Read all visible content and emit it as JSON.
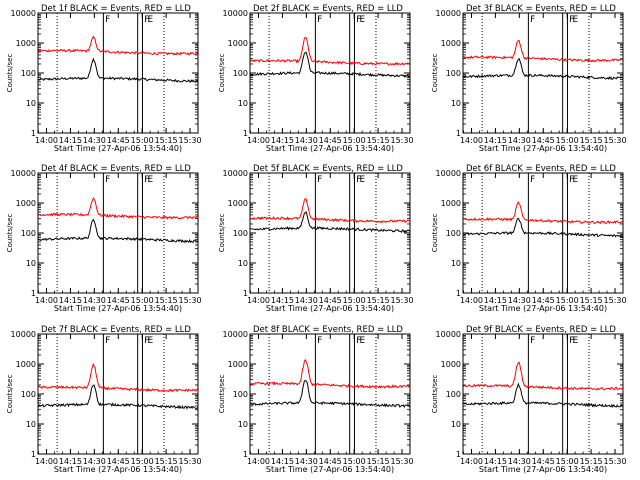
{
  "colors": {
    "events": "#000000",
    "lld": "#ff0000",
    "axis": "#000000"
  },
  "chart_data": [
    {
      "type": "line",
      "title": "Det 1f BLACK = Events, RED = LLD",
      "xlabel": "Start Time (27-Apr-06 13:54:40)",
      "ylabel": "Counts/sec",
      "yscale": "log",
      "ylim": [
        1,
        10000
      ],
      "xticks": [
        "14:00",
        "14:15",
        "14:30",
        "14:45",
        "15:00",
        "15:15",
        "15:30"
      ],
      "yticks": [
        "1",
        "10",
        "100",
        "1000",
        "10000"
      ],
      "markers": [
        "F",
        "F",
        "E"
      ],
      "series": [
        {
          "name": "Events",
          "color": "#000000",
          "baseline": 60,
          "peak": 280
        },
        {
          "name": "LLD",
          "color": "#ff0000",
          "baseline": 500,
          "peak": 1500
        }
      ]
    },
    {
      "type": "line",
      "title": "Det 2f BLACK = Events, RED = LLD",
      "xlabel": "Start Time (27-Apr-06 13:54:40)",
      "ylabel": "Counts/sec",
      "yscale": "log",
      "ylim": [
        1,
        10000
      ],
      "xticks": [
        "14:00",
        "14:15",
        "14:30",
        "14:45",
        "15:00",
        "15:15",
        "15:30"
      ],
      "yticks": [
        "1",
        "10",
        "100",
        "1000",
        "10000"
      ],
      "markers": [
        "F",
        "F",
        "E"
      ],
      "series": [
        {
          "name": "Events",
          "color": "#000000",
          "baseline": 90,
          "peak": 500
        },
        {
          "name": "LLD",
          "color": "#ff0000",
          "baseline": 230,
          "peak": 1500
        }
      ]
    },
    {
      "type": "line",
      "title": "Det 3f BLACK = Events, RED = LLD",
      "xlabel": "Start Time (27-Apr-06 13:54:40)",
      "ylabel": "Counts/sec",
      "yscale": "log",
      "ylim": [
        1,
        10000
      ],
      "xticks": [
        "14:00",
        "14:15",
        "14:30",
        "14:45",
        "15:00",
        "15:15",
        "15:30"
      ],
      "yticks": [
        "1",
        "10",
        "100",
        "1000",
        "10000"
      ],
      "markers": [
        "F",
        "F",
        "E"
      ],
      "series": [
        {
          "name": "Events",
          "color": "#000000",
          "baseline": 75,
          "peak": 300
        },
        {
          "name": "LLD",
          "color": "#ff0000",
          "baseline": 300,
          "peak": 1200
        }
      ]
    },
    {
      "type": "line",
      "title": "Det 4f BLACK = Events, RED = LLD",
      "xlabel": "Start Time (27-Apr-06 13:54:40)",
      "ylabel": "Counts/sec",
      "yscale": "log",
      "ylim": [
        1,
        10000
      ],
      "xticks": [
        "14:00",
        "14:15",
        "14:30",
        "14:45",
        "15:00",
        "15:15",
        "15:30"
      ],
      "yticks": [
        "1",
        "10",
        "100",
        "1000",
        "10000"
      ],
      "markers": [
        "F",
        "F",
        "E"
      ],
      "series": [
        {
          "name": "Events",
          "color": "#000000",
          "baseline": 60,
          "peak": 270
        },
        {
          "name": "LLD",
          "color": "#ff0000",
          "baseline": 370,
          "peak": 1400
        }
      ]
    },
    {
      "type": "line",
      "title": "Det 5f BLACK = Events, RED = LLD",
      "xlabel": "Start Time (27-Apr-06 13:54:40)",
      "ylabel": "Counts/sec",
      "yscale": "log",
      "ylim": [
        1,
        10000
      ],
      "xticks": [
        "14:00",
        "14:15",
        "14:30",
        "14:45",
        "15:00",
        "15:15",
        "15:30"
      ],
      "yticks": [
        "1",
        "10",
        "100",
        "1000",
        "10000"
      ],
      "markers": [
        "F",
        "F",
        "E"
      ],
      "series": [
        {
          "name": "Events",
          "color": "#000000",
          "baseline": 130,
          "peak": 480
        },
        {
          "name": "LLD",
          "color": "#ff0000",
          "baseline": 280,
          "peak": 1300
        }
      ]
    },
    {
      "type": "line",
      "title": "Det 6f BLACK = Events, RED = LLD",
      "xlabel": "Start Time (27-Apr-06 13:54:40)",
      "ylabel": "Counts/sec",
      "yscale": "log",
      "ylim": [
        1,
        10000
      ],
      "xticks": [
        "14:00",
        "14:15",
        "14:30",
        "14:45",
        "15:00",
        "15:15",
        "15:30"
      ],
      "yticks": [
        "1",
        "10",
        "100",
        "1000",
        "10000"
      ],
      "markers": [
        "F",
        "F",
        "E"
      ],
      "series": [
        {
          "name": "Events",
          "color": "#000000",
          "baseline": 90,
          "peak": 300
        },
        {
          "name": "LLD",
          "color": "#ff0000",
          "baseline": 260,
          "peak": 1000
        }
      ]
    },
    {
      "type": "line",
      "title": "Det 7f BLACK = Events, RED = LLD",
      "xlabel": "Start Time (27-Apr-06 13:54:40)",
      "ylabel": "Counts/sec",
      "yscale": "log",
      "ylim": [
        1,
        10000
      ],
      "xticks": [
        "14:00",
        "14:15",
        "14:30",
        "14:45",
        "15:00",
        "15:15",
        "15:30"
      ],
      "yticks": [
        "1",
        "10",
        "100",
        "1000",
        "10000"
      ],
      "markers": [
        "F",
        "F",
        "E"
      ],
      "series": [
        {
          "name": "Events",
          "color": "#000000",
          "baseline": 40,
          "peak": 200
        },
        {
          "name": "LLD",
          "color": "#ff0000",
          "baseline": 150,
          "peak": 900
        }
      ]
    },
    {
      "type": "line",
      "title": "Det 8f BLACK = Events, RED = LLD",
      "xlabel": "Start Time (27-Apr-06 13:54:40)",
      "ylabel": "Counts/sec",
      "yscale": "log",
      "ylim": [
        1,
        10000
      ],
      "xticks": [
        "14:00",
        "14:15",
        "14:30",
        "14:45",
        "15:00",
        "15:15",
        "15:30"
      ],
      "yticks": [
        "1",
        "10",
        "100",
        "1000",
        "10000"
      ],
      "markers": [
        "F",
        "F",
        "E"
      ],
      "series": [
        {
          "name": "Events",
          "color": "#000000",
          "baseline": 45,
          "peak": 300
        },
        {
          "name": "LLD",
          "color": "#ff0000",
          "baseline": 200,
          "peak": 1300
        }
      ]
    },
    {
      "type": "line",
      "title": "Det 9f BLACK = Events, RED = LLD",
      "xlabel": "Start Time (27-Apr-06 13:54:40)",
      "ylabel": "Counts/sec",
      "yscale": "log",
      "ylim": [
        1,
        10000
      ],
      "xticks": [
        "14:00",
        "14:15",
        "14:30",
        "14:45",
        "15:00",
        "15:15",
        "15:30"
      ],
      "yticks": [
        "1",
        "10",
        "100",
        "1000",
        "10000"
      ],
      "markers": [
        "F",
        "F",
        "E"
      ],
      "series": [
        {
          "name": "Events",
          "color": "#000000",
          "baseline": 45,
          "peak": 200
        },
        {
          "name": "LLD",
          "color": "#ff0000",
          "baseline": 170,
          "peak": 1100
        }
      ]
    }
  ]
}
